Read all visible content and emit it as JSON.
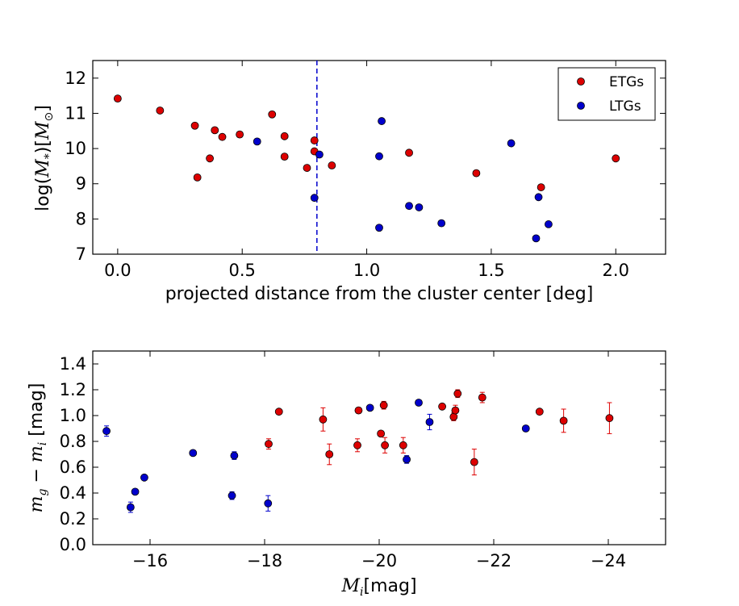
{
  "chart_data": [
    {
      "type": "scatter",
      "xlabel": "projected distance from the cluster center [deg]",
      "ylabel": "log(M*)[M⊙]",
      "ylabel_parts": {
        "prefix": "log(",
        "M": "M",
        "sub": "*",
        "mid": ")[",
        "M2": "M",
        "sun": "⊙",
        "suffix": "]"
      },
      "xlim": [
        -0.1,
        2.2
      ],
      "ylim": [
        7,
        12.5
      ],
      "xticks": [
        0.0,
        0.5,
        1.0,
        1.5,
        2.0
      ],
      "xtick_labels": [
        "0.0",
        "0.5",
        "1.0",
        "1.5",
        "2.0"
      ],
      "yticks": [
        7,
        8,
        9,
        10,
        11,
        12
      ],
      "ytick_labels": [
        "7",
        "8",
        "9",
        "10",
        "11",
        "12"
      ],
      "vline": {
        "x": 0.8,
        "style": "dashed",
        "color": "#0000cc"
      },
      "legend": {
        "location": "top-right"
      },
      "series": [
        {
          "name": "ETGs",
          "color": "#dd0000",
          "points": [
            [
              0.0,
              11.42
            ],
            [
              0.17,
              11.08
            ],
            [
              0.31,
              10.65
            ],
            [
              0.32,
              9.18
            ],
            [
              0.37,
              9.72
            ],
            [
              0.39,
              10.52
            ],
            [
              0.42,
              10.33
            ],
            [
              0.49,
              10.4
            ],
            [
              0.62,
              10.97
            ],
            [
              0.67,
              10.35
            ],
            [
              0.67,
              9.77
            ],
            [
              0.76,
              9.45
            ],
            [
              0.79,
              10.23
            ],
            [
              0.79,
              9.92
            ],
            [
              0.86,
              9.52
            ],
            [
              1.17,
              9.88
            ],
            [
              1.44,
              9.3
            ],
            [
              1.7,
              8.9
            ],
            [
              2.0,
              9.72
            ]
          ]
        },
        {
          "name": "LTGs",
          "color": "#0000cc",
          "points": [
            [
              0.56,
              10.2
            ],
            [
              0.79,
              8.6
            ],
            [
              0.81,
              9.83
            ],
            [
              1.05,
              9.78
            ],
            [
              1.05,
              7.75
            ],
            [
              1.06,
              10.78
            ],
            [
              1.17,
              8.37
            ],
            [
              1.21,
              8.33
            ],
            [
              1.3,
              7.88
            ],
            [
              1.58,
              10.15
            ],
            [
              1.68,
              7.45
            ],
            [
              1.69,
              8.62
            ],
            [
              1.73,
              7.85
            ]
          ]
        }
      ]
    },
    {
      "type": "scatter",
      "xlabel": "Mi[mag]",
      "xlabel_parts": {
        "M": "M",
        "sub": "i",
        "suffix": "[mag]"
      },
      "ylabel": "mg − mi [mag]",
      "ylabel_parts": {
        "m1": "m",
        "sub1": "g",
        "minus": " − ",
        "m2": "m",
        "sub2": "i",
        "suffix": " [mag]"
      },
      "xlim": [
        -15,
        -25
      ],
      "ylim": [
        0.0,
        1.5
      ],
      "xticks": [
        -16,
        -18,
        -20,
        -22,
        -24
      ],
      "xtick_labels": [
        "−16",
        "−18",
        "−20",
        "−22",
        "−24"
      ],
      "yticks": [
        0.0,
        0.2,
        0.4,
        0.6,
        0.8,
        1.0,
        1.2,
        1.4
      ],
      "ytick_labels": [
        "0.0",
        "0.2",
        "0.4",
        "0.6",
        "0.8",
        "1.0",
        "1.2",
        "1.4"
      ],
      "series": [
        {
          "name": "ETGs",
          "color": "#dd0000",
          "points": [
            [
              -18.07,
              0.78,
              0.04
            ],
            [
              -18.25,
              1.03,
              0.01
            ],
            [
              -19.02,
              0.97,
              0.09
            ],
            [
              -19.13,
              0.7,
              0.08
            ],
            [
              -19.62,
              0.77,
              0.05
            ],
            [
              -19.64,
              1.04,
              0.01
            ],
            [
              -20.03,
              0.86,
              0.02
            ],
            [
              -20.08,
              1.08,
              0.03
            ],
            [
              -20.1,
              0.77,
              0.06
            ],
            [
              -20.42,
              0.77,
              0.06
            ],
            [
              -21.1,
              1.07,
              0.01
            ],
            [
              -21.3,
              0.99,
              0.03
            ],
            [
              -21.33,
              1.04,
              0.04
            ],
            [
              -21.37,
              1.17,
              0.03
            ],
            [
              -21.66,
              0.64,
              0.1
            ],
            [
              -21.8,
              1.14,
              0.04
            ],
            [
              -22.8,
              1.03,
              0.01
            ],
            [
              -23.22,
              0.96,
              0.09
            ],
            [
              -24.02,
              0.98,
              0.12
            ]
          ]
        },
        {
          "name": "LTGs",
          "color": "#0000cc",
          "points": [
            [
              -15.24,
              0.88,
              0.04
            ],
            [
              -15.66,
              0.29,
              0.04
            ],
            [
              -15.74,
              0.41,
              0.01
            ],
            [
              -15.9,
              0.52,
              0.01
            ],
            [
              -16.75,
              0.71,
              0.01
            ],
            [
              -17.43,
              0.38,
              0.03
            ],
            [
              -17.47,
              0.69,
              0.03
            ],
            [
              -18.06,
              0.32,
              0.06
            ],
            [
              -19.84,
              1.06,
              0.01
            ],
            [
              -20.48,
              0.66,
              0.03
            ],
            [
              -20.69,
              1.1,
              0.01
            ],
            [
              -20.88,
              0.95,
              0.06
            ],
            [
              -22.56,
              0.9,
              0.01
            ]
          ]
        }
      ]
    }
  ]
}
